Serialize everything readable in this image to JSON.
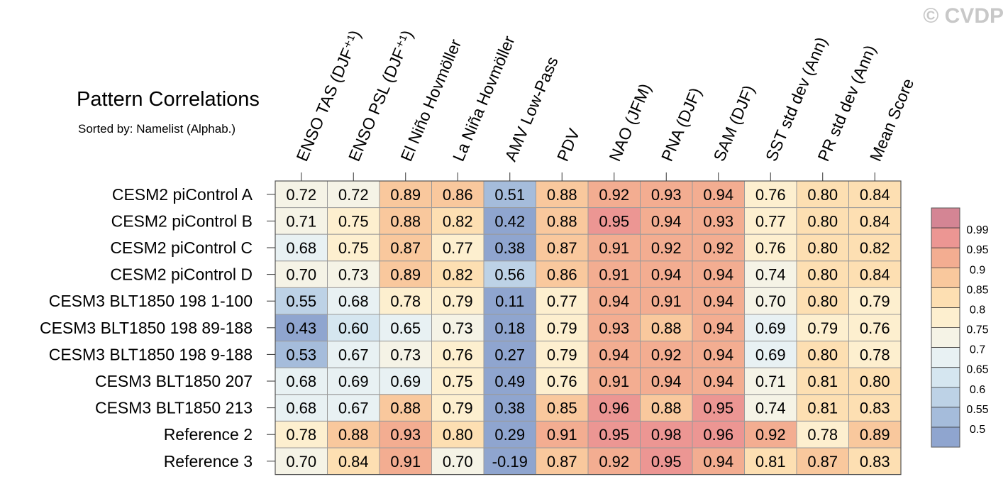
{
  "watermark": "© CVDP",
  "chart_data": {
    "type": "heatmap",
    "title": "Pattern Correlations",
    "subtitle": "Sorted by: Namelist (Alphab.)",
    "columns": [
      "ENSO TAS (DJF⁺¹)",
      "ENSO PSL (DJF⁺¹)",
      "El Niño Hovmöller",
      "La Niña Hovmöller",
      "AMV Low-Pass",
      "PDV",
      "NAO (JFM)",
      "PNA (DJF)",
      "SAM (DJF)",
      "SST std dev (Ann)",
      "PR std dev (Ann)",
      "Mean Score"
    ],
    "rows": [
      "CESM2 piControl A",
      "CESM2 piControl B",
      "CESM2 piControl C",
      "CESM2 piControl D",
      "CESM3 BLT1850 198 1-100",
      "CESM3 BLT1850 198 89-188",
      "CESM3 BLT1850 198 9-188",
      "CESM3 BLT1850 207",
      "CESM3 BLT1850 213",
      "Reference 2",
      "Reference 3"
    ],
    "values": [
      [
        "0.72",
        "0.72",
        "0.89",
        "0.86",
        "0.51",
        "0.88",
        "0.92",
        "0.93",
        "0.94",
        "0.76",
        "0.80",
        "0.84"
      ],
      [
        "0.71",
        "0.75",
        "0.88",
        "0.82",
        "0.42",
        "0.88",
        "0.95",
        "0.94",
        "0.93",
        "0.77",
        "0.80",
        "0.84"
      ],
      [
        "0.68",
        "0.75",
        "0.87",
        "0.77",
        "0.38",
        "0.87",
        "0.91",
        "0.92",
        "0.92",
        "0.76",
        "0.80",
        "0.82"
      ],
      [
        "0.70",
        "0.73",
        "0.89",
        "0.82",
        "0.56",
        "0.86",
        "0.91",
        "0.94",
        "0.94",
        "0.74",
        "0.80",
        "0.84"
      ],
      [
        "0.55",
        "0.68",
        "0.78",
        "0.79",
        "0.11",
        "0.77",
        "0.94",
        "0.91",
        "0.94",
        "0.70",
        "0.80",
        "0.79"
      ],
      [
        "0.43",
        "0.60",
        "0.65",
        "0.73",
        "0.18",
        "0.79",
        "0.93",
        "0.88",
        "0.94",
        "0.69",
        "0.79",
        "0.76"
      ],
      [
        "0.53",
        "0.67",
        "0.73",
        "0.76",
        "0.27",
        "0.79",
        "0.94",
        "0.92",
        "0.94",
        "0.69",
        "0.80",
        "0.78"
      ],
      [
        "0.68",
        "0.69",
        "0.69",
        "0.75",
        "0.49",
        "0.76",
        "0.91",
        "0.94",
        "0.94",
        "0.71",
        "0.81",
        "0.80"
      ],
      [
        "0.68",
        "0.67",
        "0.88",
        "0.79",
        "0.38",
        "0.85",
        "0.96",
        "0.88",
        "0.95",
        "0.74",
        "0.81",
        "0.83"
      ],
      [
        "0.78",
        "0.88",
        "0.93",
        "0.80",
        "0.29",
        "0.91",
        "0.95",
        "0.98",
        "0.96",
        "0.92",
        "0.78",
        "0.89"
      ],
      [
        "0.70",
        "0.84",
        "0.91",
        "0.70",
        "-0.19",
        "0.87",
        "0.92",
        "0.95",
        "0.94",
        "0.81",
        "0.87",
        "0.83"
      ]
    ],
    "colorbar": {
      "labels": [
        "0.5",
        "0.55",
        "0.6",
        "0.65",
        "0.7",
        "0.75",
        "0.8",
        "0.85",
        "0.9",
        "0.95",
        "0.99"
      ],
      "colors": [
        "#8fa5cf",
        "#a5bcdb",
        "#bdd2e6",
        "#d5e6f0",
        "#e8f1f3",
        "#f5f3e6",
        "#fdefcf",
        "#fddfb2",
        "#f9c89d",
        "#f3ad91",
        "#ec9693",
        "#d48594"
      ]
    }
  }
}
